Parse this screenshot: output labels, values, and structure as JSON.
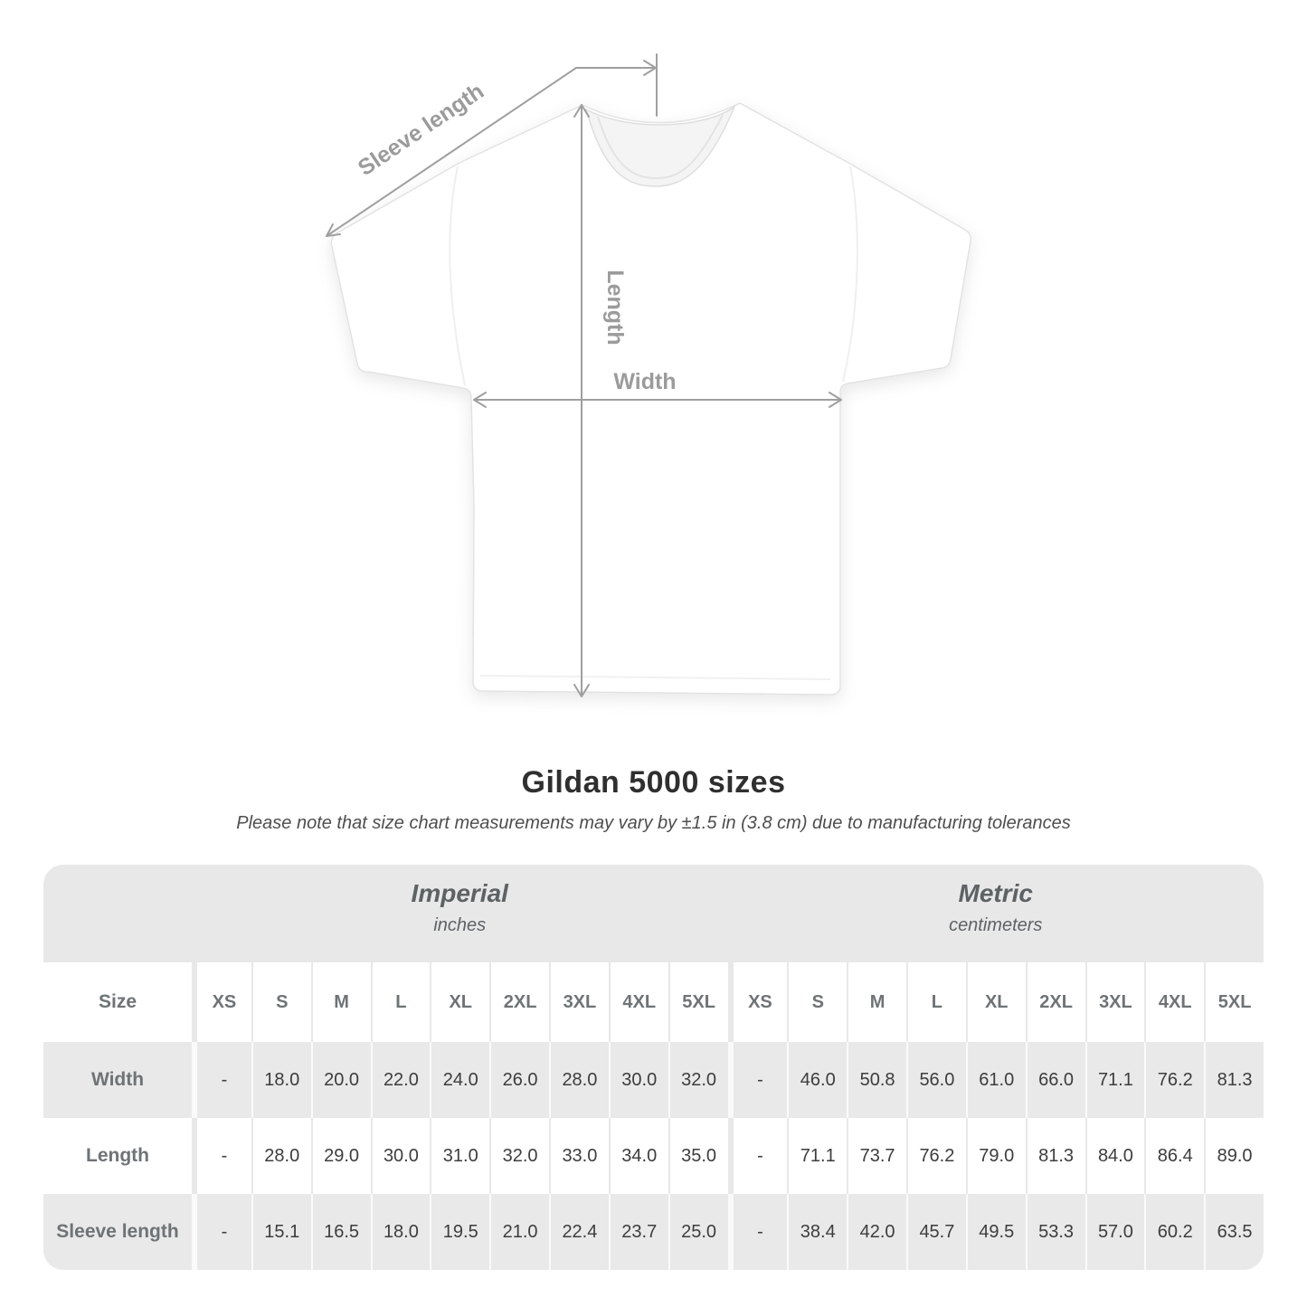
{
  "title": "Gildan 5000 sizes",
  "subtitle": "Please note that size chart measurements may vary by ±1.5 in (3.8 cm) due to manufacturing tolerances",
  "diagram": {
    "sleeve_length_label": "Sleeve length",
    "length_label": "Length",
    "width_label": "Width",
    "arrow_color": "#9f9f9f"
  },
  "table": {
    "size_header": "Size",
    "sections": [
      {
        "name": "Imperial",
        "unit": "inches"
      },
      {
        "name": "Metric",
        "unit": "centimeters"
      }
    ],
    "sizes": [
      "XS",
      "S",
      "M",
      "L",
      "XL",
      "2XL",
      "3XL",
      "4XL",
      "5XL"
    ],
    "rows": [
      {
        "label": "Width",
        "imperial": [
          "-",
          "18.0",
          "20.0",
          "22.0",
          "24.0",
          "26.0",
          "28.0",
          "30.0",
          "32.0"
        ],
        "metric": [
          "-",
          "46.0",
          "50.8",
          "56.0",
          "61.0",
          "66.0",
          "71.1",
          "76.2",
          "81.3"
        ]
      },
      {
        "label": "Length",
        "imperial": [
          "-",
          "28.0",
          "29.0",
          "30.0",
          "31.0",
          "32.0",
          "33.0",
          "34.0",
          "35.0"
        ],
        "metric": [
          "-",
          "71.1",
          "73.7",
          "76.2",
          "79.0",
          "81.3",
          "84.0",
          "86.4",
          "89.0"
        ]
      },
      {
        "label": "Sleeve length",
        "imperial": [
          "-",
          "15.1",
          "16.5",
          "18.0",
          "19.5",
          "21.0",
          "22.4",
          "23.7",
          "25.0"
        ],
        "metric": [
          "-",
          "38.4",
          "42.0",
          "45.7",
          "49.5",
          "53.3",
          "57.0",
          "60.2",
          "63.5"
        ]
      }
    ]
  },
  "colors": {
    "band_gray": "#e8e8e8",
    "row_gray": "#e9e9e9",
    "header_text": "#6e7376",
    "value_text": "#3d3d3d",
    "title_text": "#2f2f2f"
  }
}
